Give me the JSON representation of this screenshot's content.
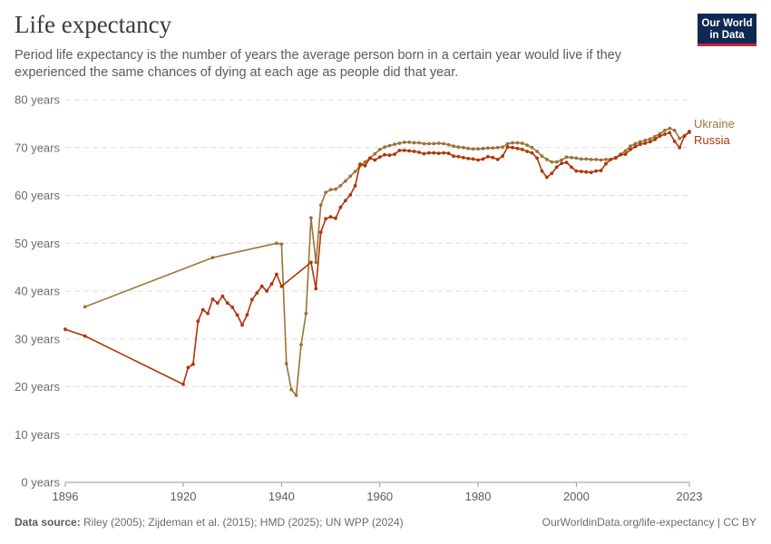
{
  "header": {
    "title": "Life expectancy",
    "subtitle": "Period life expectancy is the number of years the average person born in a certain year would live if they experienced the same chances of dying at each age as people did that year."
  },
  "logo": {
    "line1": "Our World",
    "line2": "in Data"
  },
  "footer": {
    "source_label": "Data source:",
    "source_text": "Riley (2005); Zijdeman et al. (2015); HMD (2025); UN WPP (2024)",
    "url": "OurWorldinData.org/life-expectancy | CC BY"
  },
  "chart_data": {
    "type": "line",
    "title": "Life expectancy",
    "xlim": [
      1896,
      2023
    ],
    "ylim": [
      0,
      80
    ],
    "y_ticks": [
      0,
      10,
      20,
      30,
      40,
      50,
      60,
      70,
      80
    ],
    "y_tick_labels": [
      "0 years",
      "10 years",
      "20 years",
      "30 years",
      "40 years",
      "50 years",
      "60 years",
      "70 years",
      "80 years"
    ],
    "x_ticks": [
      1896,
      1920,
      1940,
      1960,
      1980,
      2000,
      2023
    ],
    "x_tick_labels": [
      "1896",
      "1920",
      "1940",
      "1960",
      "1980",
      "2000",
      "2023"
    ],
    "grid": "horizontal dashed",
    "legend": "inline labels at line ends (right)",
    "series": [
      {
        "name": "Ukraine",
        "color": "#9a7439",
        "points": [
          [
            1900,
            36.7
          ],
          [
            1926,
            47.0
          ],
          [
            1939,
            50.0
          ],
          [
            1940,
            49.8
          ],
          [
            1941,
            24.8
          ],
          [
            1942,
            19.4
          ],
          [
            1943,
            18.2
          ],
          [
            1944,
            28.8
          ],
          [
            1945,
            35.3
          ],
          [
            1946,
            55.3
          ],
          [
            1947,
            46.0
          ],
          [
            1948,
            58.0
          ],
          [
            1949,
            60.6
          ],
          [
            1950,
            61.2
          ],
          [
            1951,
            61.3
          ],
          [
            1952,
            62.0
          ],
          [
            1953,
            63.0
          ],
          [
            1954,
            64.0
          ],
          [
            1955,
            65.0
          ],
          [
            1956,
            66.2
          ],
          [
            1957,
            67.0
          ],
          [
            1958,
            67.8
          ],
          [
            1959,
            68.7
          ],
          [
            1960,
            69.6
          ],
          [
            1961,
            70.1
          ],
          [
            1962,
            70.4
          ],
          [
            1963,
            70.7
          ],
          [
            1964,
            70.9
          ],
          [
            1965,
            71.1
          ],
          [
            1966,
            71.1
          ],
          [
            1967,
            71.0
          ],
          [
            1968,
            71.0
          ],
          [
            1969,
            70.8
          ],
          [
            1970,
            70.8
          ],
          [
            1971,
            70.8
          ],
          [
            1972,
            70.9
          ],
          [
            1973,
            70.8
          ],
          [
            1974,
            70.6
          ],
          [
            1975,
            70.3
          ],
          [
            1976,
            70.1
          ],
          [
            1977,
            70.0
          ],
          [
            1978,
            69.8
          ],
          [
            1979,
            69.7
          ],
          [
            1980,
            69.7
          ],
          [
            1981,
            69.8
          ],
          [
            1982,
            69.9
          ],
          [
            1983,
            69.9
          ],
          [
            1984,
            70.0
          ],
          [
            1985,
            70.1
          ],
          [
            1986,
            70.8
          ],
          [
            1987,
            71.0
          ],
          [
            1988,
            71.0
          ],
          [
            1989,
            70.9
          ],
          [
            1990,
            70.5
          ],
          [
            1991,
            70.0
          ],
          [
            1992,
            69.2
          ],
          [
            1993,
            68.2
          ],
          [
            1994,
            67.5
          ],
          [
            1995,
            67.0
          ],
          [
            1996,
            67.0
          ],
          [
            1997,
            67.4
          ],
          [
            1998,
            68.0
          ],
          [
            1999,
            67.9
          ],
          [
            2000,
            67.8
          ],
          [
            2001,
            67.6
          ],
          [
            2002,
            67.6
          ],
          [
            2003,
            67.5
          ],
          [
            2004,
            67.5
          ],
          [
            2005,
            67.4
          ],
          [
            2006,
            67.5
          ],
          [
            2007,
            67.5
          ],
          [
            2008,
            67.9
          ],
          [
            2009,
            68.6
          ],
          [
            2010,
            69.3
          ],
          [
            2011,
            70.3
          ],
          [
            2012,
            70.8
          ],
          [
            2013,
            71.2
          ],
          [
            2014,
            71.5
          ],
          [
            2015,
            71.8
          ],
          [
            2016,
            72.3
          ],
          [
            2017,
            72.9
          ],
          [
            2018,
            73.6
          ],
          [
            2019,
            74.0
          ],
          [
            2020,
            73.6
          ],
          [
            2021,
            71.9
          ],
          [
            2022,
            72.5
          ],
          [
            2023,
            73.4
          ]
        ]
      },
      {
        "name": "Russia",
        "color": "#b13507",
        "points": [
          [
            1896,
            32.0
          ],
          [
            1900,
            30.6
          ],
          [
            1920,
            20.5
          ],
          [
            1921,
            24.0
          ],
          [
            1922,
            24.7
          ],
          [
            1923,
            33.7
          ],
          [
            1924,
            36.1
          ],
          [
            1925,
            35.3
          ],
          [
            1926,
            38.3
          ],
          [
            1927,
            37.5
          ],
          [
            1928,
            38.9
          ],
          [
            1929,
            37.5
          ],
          [
            1930,
            36.6
          ],
          [
            1931,
            35.0
          ],
          [
            1932,
            32.9
          ],
          [
            1933,
            35.0
          ],
          [
            1934,
            38.2
          ],
          [
            1935,
            39.6
          ],
          [
            1936,
            41.0
          ],
          [
            1937,
            40.0
          ],
          [
            1938,
            41.5
          ],
          [
            1939,
            43.5
          ],
          [
            1940,
            41.0
          ],
          [
            1946,
            46.0
          ],
          [
            1947,
            40.5
          ],
          [
            1948,
            52.3
          ],
          [
            1949,
            55.1
          ],
          [
            1950,
            55.5
          ],
          [
            1951,
            55.2
          ],
          [
            1952,
            57.5
          ],
          [
            1953,
            58.9
          ],
          [
            1954,
            60.1
          ],
          [
            1955,
            62.0
          ],
          [
            1956,
            66.5
          ],
          [
            1957,
            66.2
          ],
          [
            1958,
            67.8
          ],
          [
            1959,
            67.4
          ],
          [
            1960,
            68.0
          ],
          [
            1961,
            68.5
          ],
          [
            1962,
            68.4
          ],
          [
            1963,
            68.6
          ],
          [
            1964,
            69.4
          ],
          [
            1965,
            69.4
          ],
          [
            1966,
            69.3
          ],
          [
            1967,
            69.2
          ],
          [
            1968,
            69.0
          ],
          [
            1969,
            68.7
          ],
          [
            1970,
            68.9
          ],
          [
            1971,
            68.9
          ],
          [
            1972,
            68.8
          ],
          [
            1973,
            68.9
          ],
          [
            1974,
            68.8
          ],
          [
            1975,
            68.2
          ],
          [
            1976,
            68.1
          ],
          [
            1977,
            67.9
          ],
          [
            1978,
            67.7
          ],
          [
            1979,
            67.6
          ],
          [
            1980,
            67.4
          ],
          [
            1981,
            67.6
          ],
          [
            1982,
            68.1
          ],
          [
            1983,
            67.9
          ],
          [
            1984,
            67.5
          ],
          [
            1985,
            68.2
          ],
          [
            1986,
            70.1
          ],
          [
            1987,
            70.0
          ],
          [
            1988,
            69.8
          ],
          [
            1989,
            69.6
          ],
          [
            1990,
            69.2
          ],
          [
            1991,
            68.9
          ],
          [
            1992,
            67.8
          ],
          [
            1993,
            65.1
          ],
          [
            1994,
            63.8
          ],
          [
            1995,
            64.6
          ],
          [
            1996,
            65.9
          ],
          [
            1997,
            66.7
          ],
          [
            1998,
            66.9
          ],
          [
            1999,
            65.9
          ],
          [
            2000,
            65.1
          ],
          [
            2001,
            65.0
          ],
          [
            2002,
            64.9
          ],
          [
            2003,
            64.8
          ],
          [
            2004,
            65.1
          ],
          [
            2005,
            65.2
          ],
          [
            2006,
            66.6
          ],
          [
            2007,
            67.5
          ],
          [
            2008,
            67.8
          ],
          [
            2009,
            68.5
          ],
          [
            2010,
            68.6
          ],
          [
            2011,
            69.6
          ],
          [
            2012,
            70.2
          ],
          [
            2013,
            70.7
          ],
          [
            2014,
            70.9
          ],
          [
            2015,
            71.2
          ],
          [
            2016,
            71.7
          ],
          [
            2017,
            72.4
          ],
          [
            2018,
            72.8
          ],
          [
            2019,
            73.1
          ],
          [
            2020,
            71.3
          ],
          [
            2021,
            70.0
          ],
          [
            2022,
            72.4
          ],
          [
            2023,
            73.2
          ]
        ]
      }
    ]
  }
}
